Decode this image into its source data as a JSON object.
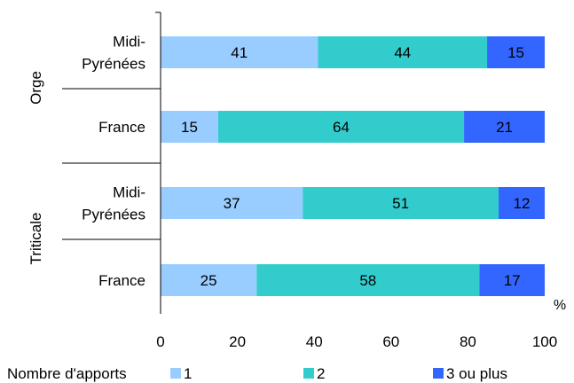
{
  "chart_data": {
    "type": "bar",
    "orientation": "horizontal",
    "stacked": true,
    "groups": [
      {
        "label": "Orge",
        "rows": [
          {
            "label_lines": [
              "Midi-",
              "Pyrénées"
            ]
          },
          {
            "label_lines": [
              "France"
            ]
          }
        ]
      },
      {
        "label": "Triticale",
        "rows": [
          {
            "label_lines": [
              "Midi-",
              "Pyrénées"
            ]
          },
          {
            "label_lines": [
              "France"
            ]
          }
        ]
      }
    ],
    "series": [
      {
        "name": "1",
        "color": "#99ccff",
        "values": [
          41,
          15,
          37,
          25
        ]
      },
      {
        "name": "2",
        "color": "#33cccc",
        "values": [
          44,
          64,
          51,
          58
        ]
      },
      {
        "name": "3 ou plus",
        "color": "#3366ff",
        "values": [
          15,
          21,
          12,
          17
        ]
      }
    ],
    "x_ticks": [
      "0",
      "20",
      "40",
      "60",
      "80",
      "100"
    ],
    "xlim": [
      0,
      100
    ],
    "x_unit": "%",
    "legend_title": "Nombre d'apports",
    "legend_position": "bottom",
    "grid": false
  }
}
